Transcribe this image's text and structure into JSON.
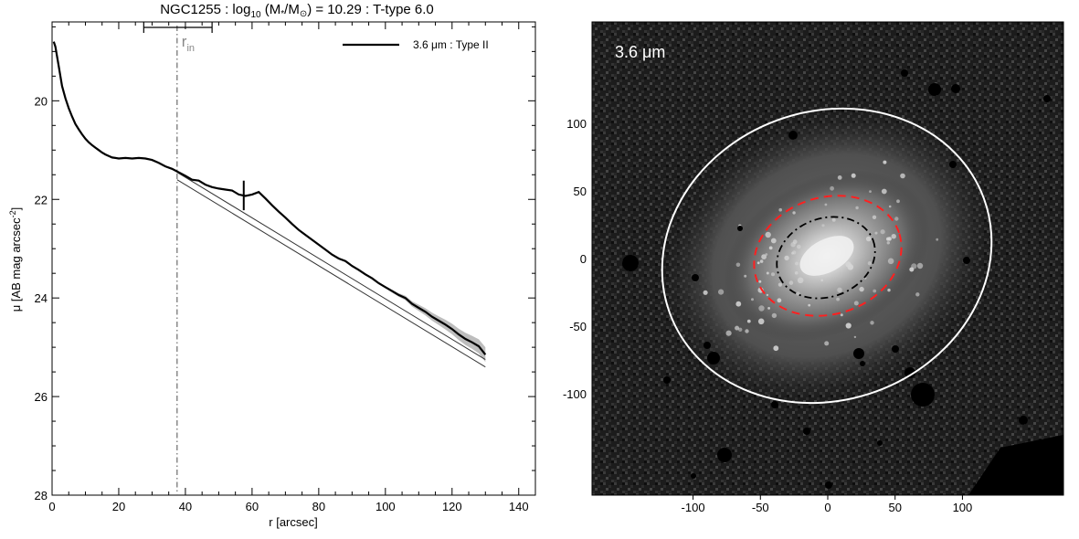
{
  "figure": {
    "title_pre": "NGC1255 : log",
    "title_sub": "10",
    "title_mid": " (M",
    "title_star": "*",
    "title_slash": "/M",
    "title_sun": "⊙",
    "title_post": ") = 10.29 : T-type 6.0"
  },
  "chart_data": [
    {
      "type": "line",
      "xlabel": "r [arcsec]",
      "ylabel_pre": "μ [AB mag arcsec",
      "ylabel_sup": "-2",
      "ylabel_post": "]",
      "xlim": [
        0,
        145
      ],
      "ylim": [
        28,
        18.4
      ],
      "y_inverted": true,
      "xticks": [
        0,
        20,
        40,
        60,
        80,
        100,
        120,
        140
      ],
      "yticks": [
        20,
        22,
        24,
        26,
        28
      ],
      "legend": {
        "label": "3.6 μm : Type II",
        "position": "top-right"
      },
      "r_in": {
        "label": "r",
        "label_sub": "in",
        "value": 37.5,
        "range": [
          27.5,
          48
        ]
      },
      "break_radius": 57.5,
      "series": [
        {
          "name": "3.6 μm : Type II",
          "x": [
            0.5,
            1,
            2,
            3,
            4,
            5,
            6,
            7,
            8,
            9,
            10,
            11,
            12,
            13,
            14,
            15,
            16,
            17,
            18,
            19,
            20,
            22,
            24,
            26,
            28,
            30,
            32,
            34,
            36,
            38,
            40,
            42,
            44,
            46,
            48,
            50,
            52,
            54,
            56,
            58,
            60,
            62,
            64,
            66,
            68,
            70,
            72,
            74,
            76,
            78,
            80,
            82,
            84,
            86,
            88,
            90,
            92,
            94,
            96,
            98,
            100,
            102,
            104,
            106,
            108,
            110,
            112,
            114,
            116,
            118,
            120,
            122,
            124,
            126,
            128,
            130
          ],
          "y": [
            18.8,
            18.9,
            19.3,
            19.7,
            19.95,
            20.15,
            20.32,
            20.47,
            20.58,
            20.68,
            20.77,
            20.84,
            20.9,
            20.95,
            21.0,
            21.05,
            21.09,
            21.12,
            21.15,
            21.16,
            21.17,
            21.16,
            21.17,
            21.16,
            21.17,
            21.2,
            21.26,
            21.33,
            21.38,
            21.45,
            21.52,
            21.6,
            21.62,
            21.7,
            21.75,
            21.78,
            21.8,
            21.82,
            21.9,
            21.93,
            21.9,
            21.85,
            21.98,
            22.12,
            22.25,
            22.37,
            22.5,
            22.62,
            22.72,
            22.82,
            22.92,
            23.02,
            23.12,
            23.2,
            23.25,
            23.35,
            23.43,
            23.52,
            23.6,
            23.7,
            23.78,
            23.86,
            23.94,
            24.0,
            24.12,
            24.2,
            24.28,
            24.38,
            24.46,
            24.54,
            24.63,
            24.74,
            24.83,
            24.9,
            24.98,
            25.15
          ]
        }
      ],
      "fit_inner": {
        "x": [
          37.5,
          130
        ],
        "y": [
          21.45,
          25.25
        ]
      },
      "fit_outer": {
        "x": [
          37.5,
          130
        ],
        "y": [
          21.6,
          25.4
        ]
      },
      "uncertainty_band": {
        "x": [
          100,
          130
        ],
        "half_width_start": 0.02,
        "half_width_end": 0.15
      }
    },
    {
      "type": "image",
      "annotation": "3.6 μm",
      "xticks": [
        -100,
        -50,
        0,
        50,
        100
      ],
      "yticks": [
        100,
        50,
        0,
        -50,
        -100
      ],
      "xlim": [
        -175,
        175
      ],
      "ylim": [
        -175,
        175
      ],
      "colors": {
        "outer_ellipse": "#ffffff",
        "middle_ellipse": "#ff2020",
        "inner_ellipse": "#000000"
      }
    }
  ]
}
